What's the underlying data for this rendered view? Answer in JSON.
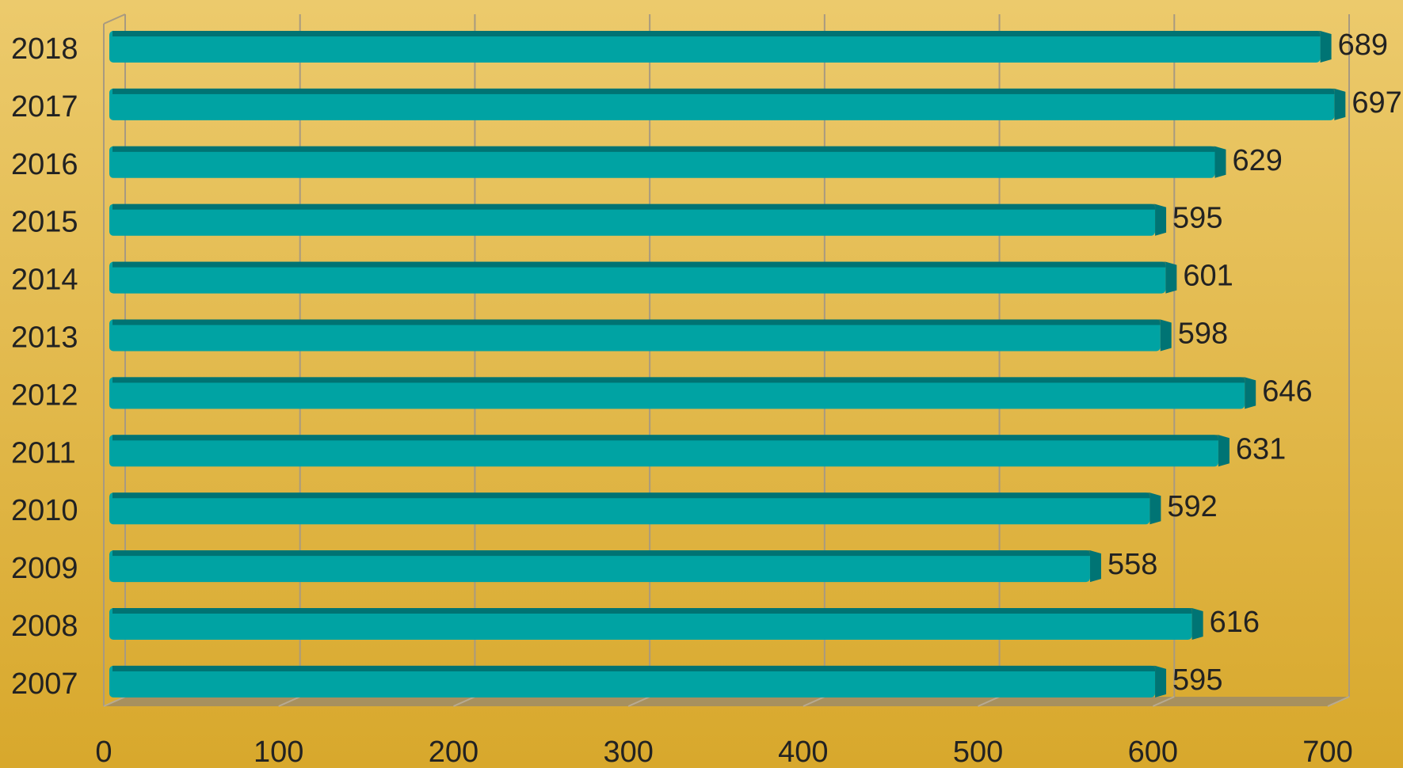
{
  "chart_data": {
    "type": "bar",
    "orientation": "horizontal",
    "categories": [
      "2018",
      "2017",
      "2016",
      "2015",
      "2014",
      "2013",
      "2012",
      "2011",
      "2010",
      "2009",
      "2008",
      "2007"
    ],
    "values": [
      689,
      697,
      629,
      595,
      601,
      598,
      646,
      631,
      592,
      558,
      616,
      595
    ],
    "color": "#00a3a3",
    "xlim": [
      0,
      700
    ],
    "xticks": [
      0,
      100,
      200,
      300,
      400,
      500,
      600,
      700
    ],
    "grid": true
  }
}
